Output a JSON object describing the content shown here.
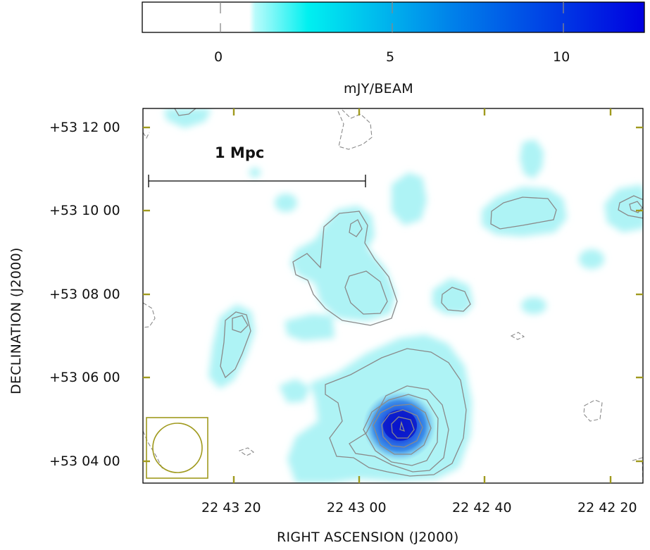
{
  "colorbar": {
    "ticks": [
      {
        "value": 0,
        "label": "0"
      },
      {
        "value": 5,
        "label": "5"
      },
      {
        "value": 10,
        "label": "10"
      }
    ],
    "range": [
      -2.2,
      12.4
    ],
    "unit_label": "mJY/BEAM",
    "colors": {
      "low": "#ffffff",
      "mid": "#00f0f0",
      "high": "#0000e0"
    }
  },
  "map": {
    "scale_bar": {
      "label": "1 Mpc"
    },
    "dec_ticks": [
      {
        "label": "+53 12 00"
      },
      {
        "label": "+53 10 00"
      },
      {
        "label": "+53 08 00"
      },
      {
        "label": "+53 06 00"
      },
      {
        "label": "+53 04 00"
      }
    ],
    "ra_ticks": [
      {
        "label": "22 43 20"
      },
      {
        "label": "22 43 00"
      },
      {
        "label": "22 42 40"
      },
      {
        "label": "22 42 20"
      }
    ],
    "xlabel": "RIGHT ASCENSION (J2000)",
    "ylabel": "DECLINATION (J2000)",
    "accent_color": "#a09a1e",
    "contour_color": "#8a8a8a",
    "emission_color": "#aef3f5"
  }
}
